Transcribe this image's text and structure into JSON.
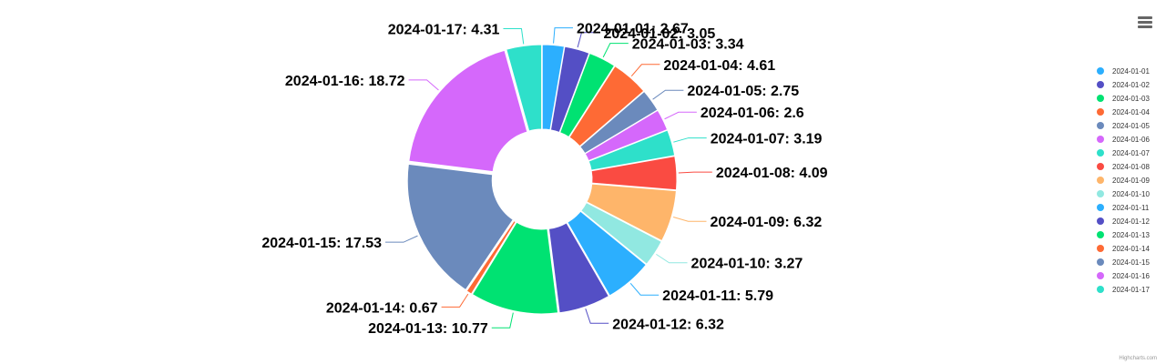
{
  "chart_data": {
    "type": "pie",
    "variant": "donut",
    "title": "",
    "categories": [
      "2024-01-01",
      "2024-01-02",
      "2024-01-03",
      "2024-01-04",
      "2024-01-05",
      "2024-01-06",
      "2024-01-07",
      "2024-01-08",
      "2024-01-09",
      "2024-01-10",
      "2024-01-11",
      "2024-01-12",
      "2024-01-13",
      "2024-01-14",
      "2024-01-15",
      "2024-01-16",
      "2024-01-17"
    ],
    "values": [
      2.67,
      3.05,
      3.34,
      4.61,
      2.75,
      2.6,
      3.19,
      4.09,
      6.32,
      3.27,
      5.79,
      6.32,
      10.77,
      0.67,
      17.53,
      18.72,
      4.31
    ],
    "labels": [
      "2024-01-01: 2.67",
      "2024-01-02: 3.05",
      "2024-01-03: 3.34",
      "2024-01-04: 4.61",
      "2024-01-05: 2.75",
      "2024-01-06: 2.6",
      "2024-01-07: 3.19",
      "2024-01-08: 4.09",
      "2024-01-09: 6.32",
      "2024-01-10: 3.27",
      "2024-01-11: 5.79",
      "2024-01-12: 6.32",
      "2024-01-13: 10.77",
      "2024-01-14: 0.67",
      "2024-01-15: 17.53",
      "2024-01-16: 18.72",
      "2024-01-17: 4.31"
    ],
    "colors": [
      "#2caffe",
      "#544fc5",
      "#00e272",
      "#fe6a35",
      "#6b8abc",
      "#d568fb",
      "#2ee0ca",
      "#fa4b42",
      "#feb56a",
      "#91e8e1",
      "#2caffe",
      "#544fc5",
      "#00e272",
      "#fe6a35",
      "#6b8abc",
      "#d568fb",
      "#2ee0ca"
    ],
    "legend": {
      "position": "right",
      "entries": [
        "2024-01-01",
        "2024-01-02",
        "2024-01-03",
        "2024-01-04",
        "2024-01-05",
        "2024-01-06",
        "2024-01-07",
        "2024-01-08",
        "2024-01-09",
        "2024-01-10",
        "2024-01-11",
        "2024-01-12",
        "2024-01-13",
        "2024-01-14",
        "2024-01-15",
        "2024-01-16",
        "2024-01-17"
      ]
    }
  },
  "menu": {
    "icon": "hamburger-menu-icon"
  },
  "credits": "Highcharts.com"
}
